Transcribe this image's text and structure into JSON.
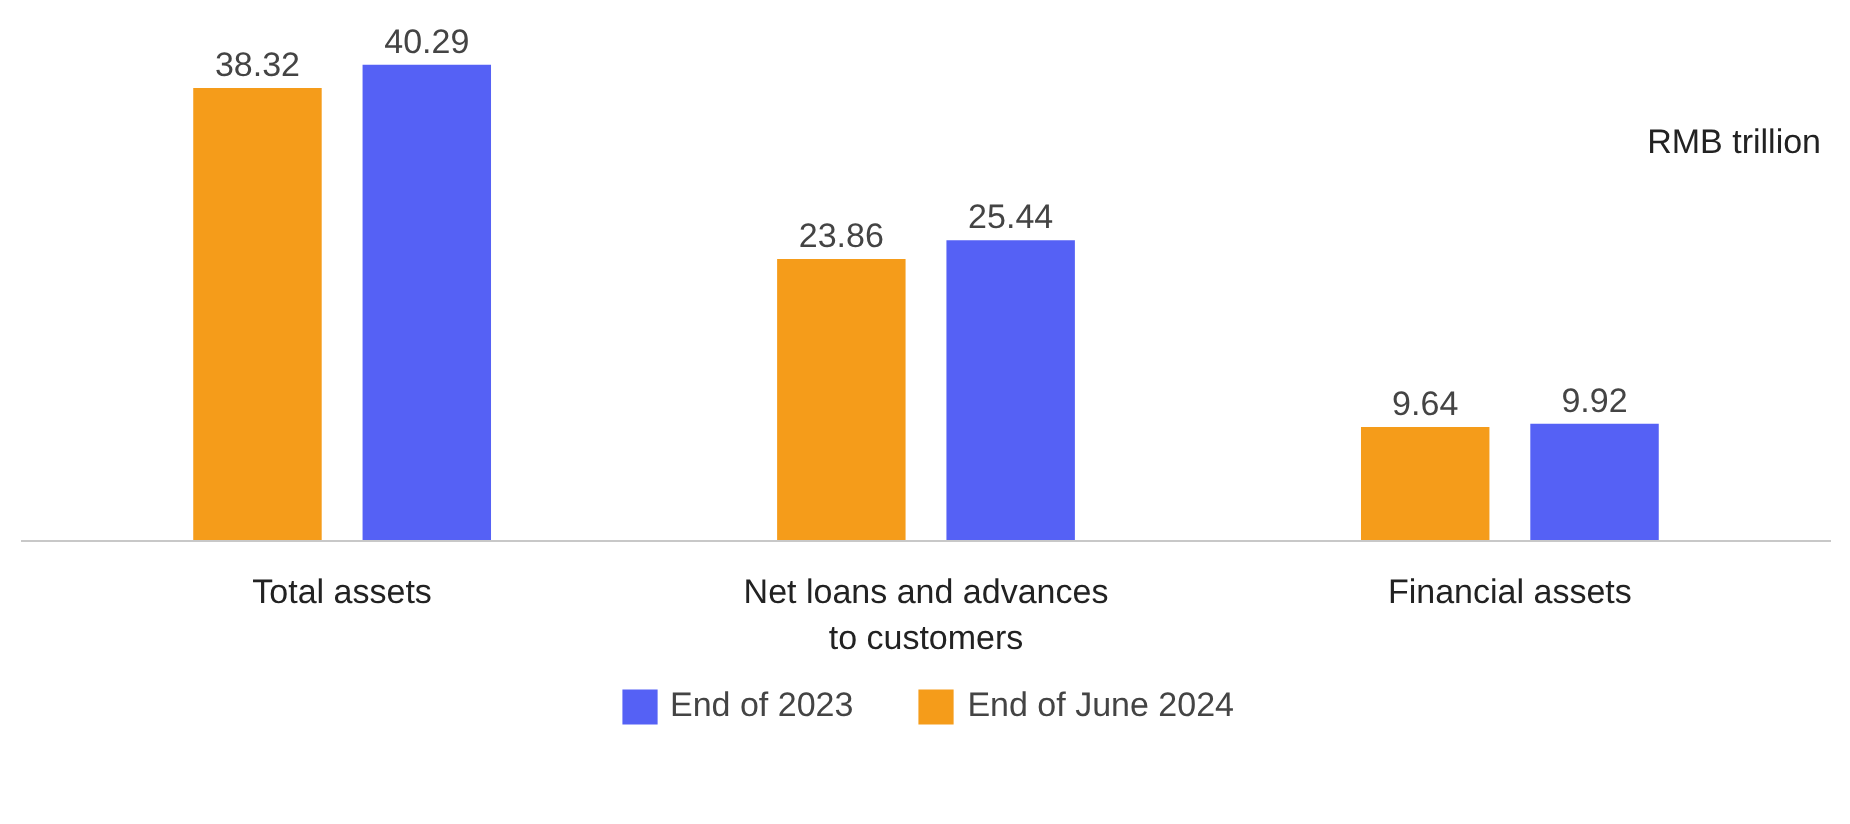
{
  "chart_data": {
    "type": "bar",
    "categories": [
      "Total assets",
      "Net loans and advances to customers",
      "Financial assets"
    ],
    "series": [
      {
        "name": "End of June 2024",
        "color": "#f59c1a",
        "values": [
          38.32,
          23.86,
          9.64
        ]
      },
      {
        "name": "End of 2023",
        "color": "#5561f5",
        "values": [
          40.29,
          25.44,
          9.92
        ]
      }
    ],
    "data_labels": true,
    "legend": "bottom",
    "grid": false,
    "annotations": [
      "RMB trillion"
    ]
  }
}
